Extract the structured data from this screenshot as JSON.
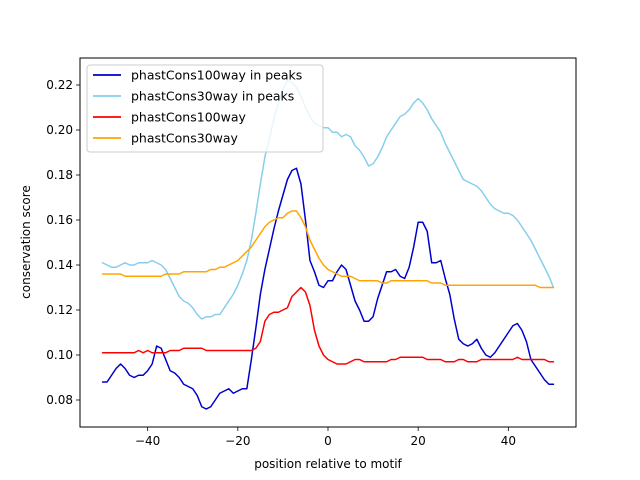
{
  "chart_data": {
    "type": "line",
    "title": "",
    "xlabel": "position relative to motif",
    "ylabel": "conservation score",
    "xlim": [
      -55,
      55
    ],
    "ylim": [
      0.068,
      0.232
    ],
    "xticks": [
      -40,
      -20,
      0,
      20,
      40
    ],
    "yticks": [
      0.08,
      0.1,
      0.12,
      0.14,
      0.16,
      0.18,
      0.2,
      0.22
    ],
    "xtick_labels": [
      "−40",
      "−20",
      "0",
      "20",
      "40"
    ],
    "ytick_labels": [
      "0.08",
      "0.10",
      "0.12",
      "0.14",
      "0.16",
      "0.18",
      "0.20",
      "0.22"
    ],
    "grid": false,
    "legend_position": "upper-left",
    "x": [
      -50,
      -49,
      -48,
      -47,
      -46,
      -45,
      -44,
      -43,
      -42,
      -41,
      -40,
      -39,
      -38,
      -37,
      -36,
      -35,
      -34,
      -33,
      -32,
      -31,
      -30,
      -29,
      -28,
      -27,
      -26,
      -25,
      -24,
      -23,
      -22,
      -21,
      -20,
      -19,
      -18,
      -17,
      -16,
      -15,
      -14,
      -13,
      -12,
      -11,
      -10,
      -9,
      -8,
      -7,
      -6,
      -5,
      -4,
      -3,
      -2,
      -1,
      0,
      1,
      2,
      3,
      4,
      5,
      6,
      7,
      8,
      9,
      10,
      11,
      12,
      13,
      14,
      15,
      16,
      17,
      18,
      19,
      20,
      21,
      22,
      23,
      24,
      25,
      26,
      27,
      28,
      29,
      30,
      31,
      32,
      33,
      34,
      35,
      36,
      37,
      38,
      39,
      40,
      41,
      42,
      43,
      44,
      45,
      46,
      47,
      48,
      49,
      50
    ],
    "series": [
      {
        "name": "phastCons100way in peaks",
        "color": "#0000cd",
        "values": [
          0.088,
          0.088,
          0.091,
          0.094,
          0.096,
          0.094,
          0.091,
          0.09,
          0.091,
          0.091,
          0.093,
          0.096,
          0.104,
          0.103,
          0.098,
          0.093,
          0.092,
          0.09,
          0.087,
          0.086,
          0.085,
          0.082,
          0.077,
          0.076,
          0.077,
          0.08,
          0.083,
          0.084,
          0.085,
          0.083,
          0.084,
          0.085,
          0.085,
          0.098,
          0.112,
          0.127,
          0.138,
          0.147,
          0.156,
          0.164,
          0.171,
          0.178,
          0.182,
          0.183,
          0.176,
          0.16,
          0.142,
          0.137,
          0.131,
          0.13,
          0.133,
          0.133,
          0.137,
          0.14,
          0.138,
          0.131,
          0.124,
          0.12,
          0.115,
          0.115,
          0.117,
          0.125,
          0.131,
          0.137,
          0.137,
          0.138,
          0.135,
          0.134,
          0.139,
          0.148,
          0.159,
          0.159,
          0.155,
          0.141,
          0.141,
          0.142,
          0.134,
          0.127,
          0.116,
          0.107,
          0.105,
          0.104,
          0.105,
          0.107,
          0.103,
          0.1,
          0.099,
          0.101,
          0.104,
          0.107,
          0.11,
          0.113,
          0.114,
          0.111,
          0.106,
          0.098,
          0.095,
          0.092,
          0.089,
          0.087,
          0.087
        ]
      },
      {
        "name": "phastCons30way in peaks",
        "color": "#87ceeb",
        "values": [
          0.141,
          0.14,
          0.139,
          0.139,
          0.14,
          0.141,
          0.14,
          0.14,
          0.141,
          0.141,
          0.141,
          0.142,
          0.141,
          0.14,
          0.138,
          0.134,
          0.13,
          0.126,
          0.124,
          0.123,
          0.121,
          0.118,
          0.116,
          0.117,
          0.117,
          0.118,
          0.118,
          0.121,
          0.124,
          0.127,
          0.131,
          0.136,
          0.142,
          0.151,
          0.163,
          0.176,
          0.188,
          0.196,
          0.205,
          0.212,
          0.218,
          0.222,
          0.221,
          0.219,
          0.215,
          0.21,
          0.206,
          0.203,
          0.202,
          0.201,
          0.201,
          0.199,
          0.199,
          0.197,
          0.198,
          0.197,
          0.193,
          0.191,
          0.188,
          0.184,
          0.185,
          0.188,
          0.192,
          0.197,
          0.2,
          0.203,
          0.206,
          0.207,
          0.209,
          0.212,
          0.214,
          0.212,
          0.209,
          0.205,
          0.202,
          0.199,
          0.194,
          0.19,
          0.186,
          0.182,
          0.178,
          0.177,
          0.176,
          0.175,
          0.173,
          0.17,
          0.167,
          0.165,
          0.164,
          0.163,
          0.163,
          0.162,
          0.16,
          0.157,
          0.154,
          0.151,
          0.147,
          0.143,
          0.139,
          0.135,
          0.13
        ]
      },
      {
        "name": "phastCons100way",
        "color": "#ff0000",
        "values": [
          0.101,
          0.101,
          0.101,
          0.101,
          0.101,
          0.101,
          0.101,
          0.101,
          0.102,
          0.101,
          0.102,
          0.101,
          0.101,
          0.101,
          0.101,
          0.102,
          0.102,
          0.102,
          0.103,
          0.103,
          0.103,
          0.103,
          0.103,
          0.102,
          0.102,
          0.102,
          0.102,
          0.102,
          0.102,
          0.102,
          0.102,
          0.102,
          0.102,
          0.102,
          0.103,
          0.106,
          0.115,
          0.118,
          0.119,
          0.119,
          0.12,
          0.121,
          0.126,
          0.128,
          0.13,
          0.128,
          0.122,
          0.111,
          0.104,
          0.1,
          0.098,
          0.097,
          0.096,
          0.096,
          0.096,
          0.097,
          0.098,
          0.098,
          0.097,
          0.097,
          0.097,
          0.097,
          0.097,
          0.097,
          0.098,
          0.098,
          0.099,
          0.099,
          0.099,
          0.099,
          0.099,
          0.099,
          0.098,
          0.098,
          0.098,
          0.098,
          0.097,
          0.097,
          0.097,
          0.098,
          0.098,
          0.097,
          0.097,
          0.097,
          0.098,
          0.098,
          0.098,
          0.098,
          0.098,
          0.098,
          0.098,
          0.098,
          0.099,
          0.098,
          0.098,
          0.098,
          0.098,
          0.098,
          0.098,
          0.097,
          0.097
        ]
      },
      {
        "name": "phastCons30way",
        "color": "#ffa500",
        "values": [
          0.136,
          0.136,
          0.136,
          0.136,
          0.136,
          0.135,
          0.135,
          0.135,
          0.135,
          0.135,
          0.135,
          0.135,
          0.135,
          0.135,
          0.136,
          0.136,
          0.136,
          0.136,
          0.137,
          0.137,
          0.137,
          0.137,
          0.137,
          0.137,
          0.138,
          0.138,
          0.139,
          0.139,
          0.14,
          0.141,
          0.142,
          0.144,
          0.146,
          0.148,
          0.151,
          0.154,
          0.157,
          0.159,
          0.16,
          0.161,
          0.161,
          0.163,
          0.164,
          0.164,
          0.161,
          0.157,
          0.151,
          0.147,
          0.143,
          0.14,
          0.138,
          0.137,
          0.136,
          0.135,
          0.135,
          0.135,
          0.134,
          0.133,
          0.133,
          0.133,
          0.133,
          0.133,
          0.132,
          0.132,
          0.133,
          0.133,
          0.133,
          0.133,
          0.133,
          0.133,
          0.133,
          0.133,
          0.133,
          0.132,
          0.132,
          0.132,
          0.131,
          0.131,
          0.131,
          0.131,
          0.131,
          0.131,
          0.131,
          0.131,
          0.131,
          0.131,
          0.131,
          0.131,
          0.131,
          0.131,
          0.131,
          0.131,
          0.131,
          0.131,
          0.131,
          0.131,
          0.131,
          0.13,
          0.13,
          0.13,
          0.13
        ]
      }
    ]
  }
}
